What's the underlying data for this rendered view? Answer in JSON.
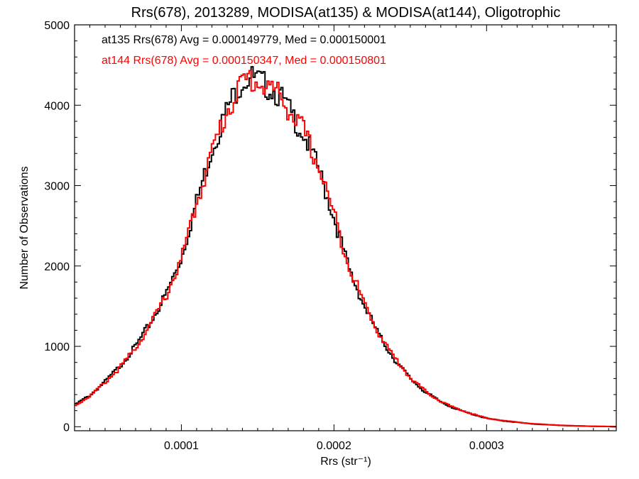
{
  "chart_data": {
    "type": "line",
    "title": "Rrs(678), 2013289, MODISA(at135) & MODISA(at144), Oligotrophic",
    "xlabel": "Rrs (str⁻¹)",
    "ylabel": "Number of Observations",
    "xlim": [
      3e-05,
      0.000385
    ],
    "ylim": [
      -50,
      5000
    ],
    "xticks": [
      0.0001,
      0.0002,
      0.0003
    ],
    "xtick_labels": [
      "0.0001",
      "0.0002",
      "0.0003"
    ],
    "yticks": [
      0,
      1000,
      2000,
      3000,
      4000,
      5000
    ],
    "ytick_labels": [
      "0",
      "1000",
      "2000",
      "3000",
      "4000",
      "5000"
    ],
    "grid": false,
    "legend_position": "top-left",
    "series": [
      {
        "name": "at135",
        "color": "#000000",
        "stats_label": "at135 Rrs(678) Avg = 0.000149779, Med = 0.000150001",
        "x": [
          3e-05,
          4e-05,
          5e-05,
          6e-05,
          7e-05,
          8e-05,
          9e-05,
          0.0001,
          0.00011,
          0.00012,
          0.00013,
          0.000135,
          0.00014,
          0.000145,
          0.00015,
          0.000155,
          0.00016,
          0.000165,
          0.00017,
          0.00018,
          0.00019,
          0.0002,
          0.00021,
          0.00022,
          0.00023,
          0.00024,
          0.00025,
          0.00026,
          0.00027,
          0.00028,
          0.00029,
          0.0003,
          0.00031,
          0.00032,
          0.00033,
          0.00034,
          0.00035,
          0.00036,
          0.00037,
          0.00038,
          0.000385
        ],
        "y": [
          270,
          390,
          560,
          760,
          1000,
          1300,
          1650,
          2100,
          2800,
          3450,
          3950,
          4150,
          4300,
          4350,
          4300,
          4250,
          4200,
          4100,
          3950,
          3650,
          3200,
          2600,
          1950,
          1500,
          1120,
          830,
          600,
          430,
          310,
          220,
          160,
          105,
          75,
          55,
          35,
          25,
          15,
          10,
          5,
          3,
          0
        ]
      },
      {
        "name": "at144",
        "color": "#ff0000",
        "stats_label": "at144 Rrs(678) Avg = 0.000150347, Med = 0.000150801",
        "x": [
          3e-05,
          4e-05,
          5e-05,
          6e-05,
          7e-05,
          8e-05,
          9e-05,
          0.0001,
          0.00011,
          0.00012,
          0.00013,
          0.000135,
          0.00014,
          0.000145,
          0.00015,
          0.000155,
          0.00016,
          0.000165,
          0.00017,
          0.00018,
          0.00019,
          0.0002,
          0.00021,
          0.00022,
          0.00023,
          0.00024,
          0.00025,
          0.00026,
          0.00027,
          0.00028,
          0.00029,
          0.0003,
          0.00031,
          0.00032,
          0.00033,
          0.00034,
          0.00035,
          0.00036,
          0.00037,
          0.00038,
          0.000385
        ],
        "y": [
          260,
          380,
          550,
          740,
          980,
          1280,
          1630,
          2080,
          2780,
          3420,
          3930,
          4120,
          4270,
          4330,
          4290,
          4240,
          4190,
          4110,
          3960,
          3680,
          3240,
          2640,
          1990,
          1530,
          1140,
          850,
          610,
          440,
          315,
          225,
          162,
          108,
          78,
          57,
          38,
          27,
          17,
          11,
          6,
          3,
          0
        ]
      }
    ]
  }
}
